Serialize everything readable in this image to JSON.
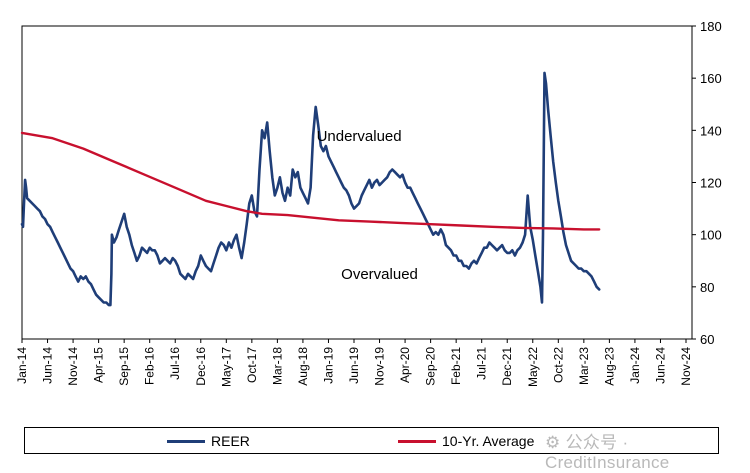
{
  "chart_data": {
    "type": "line",
    "y_axis": {
      "position": "right",
      "min": 60,
      "max": 180,
      "ticks": [
        60,
        80,
        100,
        120,
        140,
        160,
        180
      ]
    },
    "x_tick_labels": [
      "Jan-14",
      "Jun-14",
      "Nov-14",
      "Apr-15",
      "Sep-15",
      "Feb-16",
      "Jul-16",
      "Dec-16",
      "May-17",
      "Oct-17",
      "Mar-18",
      "Aug-18",
      "Jan-19",
      "Jun-19",
      "Nov-19",
      "Apr-20",
      "Sep-20",
      "Feb-21",
      "Jul-21",
      "Dec-21",
      "May-22",
      "Oct-22",
      "Mar-23",
      "Aug-23",
      "Jan-24",
      "Jun-24",
      "Nov-24"
    ],
    "annotations": [
      {
        "text": "Undervalued",
        "x_month": 66,
        "y": 136
      },
      {
        "text": "Overvalued",
        "x_month": 70,
        "y": 83
      }
    ],
    "series": [
      {
        "name": "REER",
        "color": "#1f3e78",
        "points": [
          [
            0,
            104
          ],
          [
            0.2,
            103
          ],
          [
            0.4,
            112
          ],
          [
            0.6,
            121
          ],
          [
            0.8,
            118
          ],
          [
            1,
            114
          ],
          [
            1.5,
            113
          ],
          [
            2,
            112
          ],
          [
            2.5,
            111
          ],
          [
            3,
            110
          ],
          [
            3.5,
            109
          ],
          [
            4,
            107
          ],
          [
            4.5,
            106
          ],
          [
            5,
            104
          ],
          [
            5.5,
            103
          ],
          [
            6,
            101
          ],
          [
            6.5,
            99
          ],
          [
            7,
            97
          ],
          [
            7.5,
            95
          ],
          [
            8,
            93
          ],
          [
            8.5,
            91
          ],
          [
            9,
            89
          ],
          [
            9.5,
            87
          ],
          [
            10,
            86
          ],
          [
            10.5,
            84
          ],
          [
            11,
            82
          ],
          [
            11.5,
            84
          ],
          [
            12,
            83
          ],
          [
            12.5,
            84
          ],
          [
            13,
            82
          ],
          [
            13.5,
            81
          ],
          [
            14,
            79
          ],
          [
            14.5,
            77
          ],
          [
            15,
            76
          ],
          [
            15.5,
            75
          ],
          [
            16,
            74
          ],
          [
            16.5,
            74
          ],
          [
            17,
            73
          ],
          [
            17.3,
            73
          ],
          [
            17.5,
            85
          ],
          [
            17.6,
            100
          ],
          [
            18,
            97
          ],
          [
            18.5,
            99
          ],
          [
            19,
            102
          ],
          [
            19.5,
            105
          ],
          [
            20,
            108
          ],
          [
            20.5,
            103
          ],
          [
            21,
            100
          ],
          [
            21.5,
            96
          ],
          [
            22,
            93
          ],
          [
            22.5,
            90
          ],
          [
            23,
            92
          ],
          [
            23.5,
            95
          ],
          [
            24,
            94
          ],
          [
            24.5,
            93
          ],
          [
            25,
            95
          ],
          [
            25.5,
            94
          ],
          [
            26,
            94
          ],
          [
            26.5,
            92
          ],
          [
            27,
            89
          ],
          [
            27.5,
            90
          ],
          [
            28,
            91
          ],
          [
            28.5,
            90
          ],
          [
            29,
            89
          ],
          [
            29.5,
            91
          ],
          [
            30,
            90
          ],
          [
            30.5,
            88
          ],
          [
            31,
            85
          ],
          [
            31.5,
            84
          ],
          [
            32,
            83
          ],
          [
            32.5,
            85
          ],
          [
            33,
            84
          ],
          [
            33.5,
            83
          ],
          [
            34,
            86
          ],
          [
            34.5,
            88
          ],
          [
            35,
            92
          ],
          [
            35.5,
            90
          ],
          [
            36,
            88
          ],
          [
            36.5,
            87
          ],
          [
            37,
            86
          ],
          [
            37.5,
            89
          ],
          [
            38,
            92
          ],
          [
            38.5,
            95
          ],
          [
            39,
            97
          ],
          [
            39.5,
            96
          ],
          [
            40,
            94
          ],
          [
            40.5,
            97
          ],
          [
            41,
            95
          ],
          [
            41.5,
            98
          ],
          [
            42,
            100
          ],
          [
            42.5,
            95
          ],
          [
            43,
            91
          ],
          [
            43.5,
            97
          ],
          [
            44,
            104
          ],
          [
            44.5,
            112
          ],
          [
            45,
            115
          ],
          [
            45.5,
            109
          ],
          [
            46,
            107
          ],
          [
            46.5,
            125
          ],
          [
            47,
            140
          ],
          [
            47.5,
            137
          ],
          [
            48,
            143
          ],
          [
            48.5,
            132
          ],
          [
            49,
            122
          ],
          [
            49.5,
            115
          ],
          [
            50,
            118
          ],
          [
            50.5,
            122
          ],
          [
            51,
            116
          ],
          [
            51.5,
            113
          ],
          [
            52,
            118
          ],
          [
            52.5,
            115
          ],
          [
            53,
            125
          ],
          [
            53.5,
            122
          ],
          [
            54,
            124
          ],
          [
            54.5,
            118
          ],
          [
            55,
            116
          ],
          [
            55.5,
            114
          ],
          [
            56,
            112
          ],
          [
            56.5,
            118
          ],
          [
            57,
            138
          ],
          [
            57.5,
            149
          ],
          [
            58,
            142
          ],
          [
            58.5,
            134
          ],
          [
            59,
            132
          ],
          [
            59.5,
            134
          ],
          [
            60,
            130
          ],
          [
            60.5,
            128
          ],
          [
            61,
            126
          ],
          [
            61.5,
            124
          ],
          [
            62,
            122
          ],
          [
            62.5,
            120
          ],
          [
            63,
            118
          ],
          [
            63.5,
            117
          ],
          [
            64,
            115
          ],
          [
            64.5,
            112
          ],
          [
            65,
            110
          ],
          [
            65.5,
            111
          ],
          [
            66,
            112
          ],
          [
            66.5,
            115
          ],
          [
            67,
            117
          ],
          [
            67.5,
            119
          ],
          [
            68,
            121
          ],
          [
            68.5,
            118
          ],
          [
            69,
            120
          ],
          [
            69.5,
            121
          ],
          [
            70,
            119
          ],
          [
            70.5,
            120
          ],
          [
            71,
            121
          ],
          [
            71.5,
            122
          ],
          [
            72,
            124
          ],
          [
            72.5,
            125
          ],
          [
            73,
            124
          ],
          [
            73.5,
            123
          ],
          [
            74,
            122
          ],
          [
            74.5,
            123
          ],
          [
            75,
            120
          ],
          [
            75.5,
            118
          ],
          [
            76,
            118
          ],
          [
            76.5,
            116
          ],
          [
            77,
            114
          ],
          [
            77.5,
            112
          ],
          [
            78,
            110
          ],
          [
            78.5,
            108
          ],
          [
            79,
            106
          ],
          [
            79.5,
            104
          ],
          [
            80,
            102
          ],
          [
            80.5,
            100
          ],
          [
            81,
            101
          ],
          [
            81.5,
            100
          ],
          [
            82,
            102
          ],
          [
            82.5,
            100
          ],
          [
            83,
            96
          ],
          [
            83.5,
            95
          ],
          [
            84,
            94
          ],
          [
            84.5,
            92
          ],
          [
            85,
            92
          ],
          [
            85.5,
            90
          ],
          [
            86,
            90
          ],
          [
            86.5,
            88
          ],
          [
            87,
            88
          ],
          [
            87.5,
            87
          ],
          [
            88,
            89
          ],
          [
            88.5,
            90
          ],
          [
            89,
            89
          ],
          [
            89.5,
            91
          ],
          [
            90,
            93
          ],
          [
            90.5,
            95
          ],
          [
            91,
            95
          ],
          [
            91.5,
            97
          ],
          [
            92,
            96
          ],
          [
            92.5,
            95
          ],
          [
            93,
            94
          ],
          [
            93.5,
            95
          ],
          [
            94,
            96
          ],
          [
            94.5,
            94
          ],
          [
            95,
            93
          ],
          [
            95.5,
            93
          ],
          [
            96,
            94
          ],
          [
            96.5,
            92
          ],
          [
            97,
            94
          ],
          [
            97.5,
            95
          ],
          [
            98,
            97
          ],
          [
            98.5,
            100
          ],
          [
            99,
            115
          ],
          [
            99.5,
            103
          ],
          [
            100,
            98
          ],
          [
            100.5,
            92
          ],
          [
            101,
            86
          ],
          [
            101.5,
            80
          ],
          [
            101.8,
            74
          ],
          [
            102,
            100
          ],
          [
            102.3,
            162
          ],
          [
            102.6,
            158
          ],
          [
            103,
            148
          ],
          [
            103.5,
            138
          ],
          [
            104,
            128
          ],
          [
            104.5,
            120
          ],
          [
            105,
            113
          ],
          [
            105.5,
            107
          ],
          [
            106,
            101
          ],
          [
            106.5,
            96
          ],
          [
            107,
            93
          ],
          [
            107.5,
            90
          ],
          [
            108,
            89
          ],
          [
            108.5,
            88
          ],
          [
            109,
            87
          ],
          [
            109.5,
            87
          ],
          [
            110,
            86
          ],
          [
            110.5,
            86
          ],
          [
            111,
            85
          ],
          [
            111.5,
            84
          ],
          [
            112,
            82
          ],
          [
            112.5,
            80
          ],
          [
            113,
            79
          ]
        ]
      },
      {
        "name": "10-Yr. Average",
        "color": "#c8102e",
        "points": [
          [
            0,
            139
          ],
          [
            6,
            137
          ],
          [
            12,
            133
          ],
          [
            18,
            128
          ],
          [
            24,
            123
          ],
          [
            30,
            118
          ],
          [
            36,
            113
          ],
          [
            40,
            111
          ],
          [
            44,
            109
          ],
          [
            47,
            108
          ],
          [
            52,
            107.5
          ],
          [
            57,
            106.5
          ],
          [
            62,
            105.5
          ],
          [
            68,
            105
          ],
          [
            74,
            104.5
          ],
          [
            80,
            104
          ],
          [
            86,
            103.5
          ],
          [
            92,
            103
          ],
          [
            98,
            102.6
          ],
          [
            104,
            102.4
          ],
          [
            110,
            102
          ],
          [
            113,
            102
          ]
        ]
      }
    ]
  },
  "legend": {
    "items": [
      {
        "label": "REER",
        "color": "#1f3e78"
      },
      {
        "label": "10-Yr. Average",
        "color": "#c8102e"
      }
    ]
  },
  "watermark": {
    "text": "⚙ 公众号 · CreditInsurance"
  }
}
